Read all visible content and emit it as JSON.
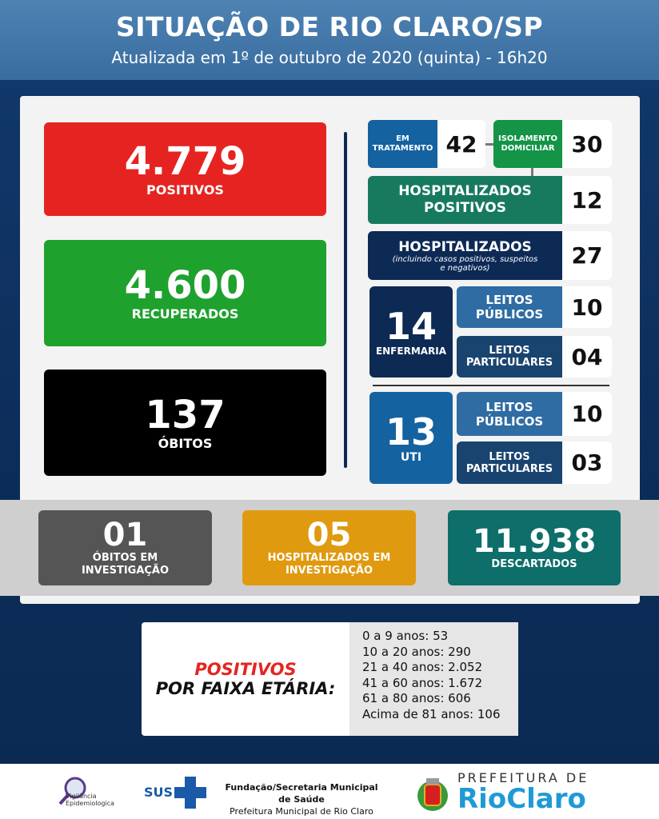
{
  "header": {
    "title": "SITUAÇÃO DE RIO CLARO/SP",
    "subtitle": "Atualizada em 1º de outubro de 2020 (quinta) - 16h20"
  },
  "main": {
    "positivos": {
      "value": "4.779",
      "label": "POSITIVOS",
      "color": "#e52421"
    },
    "recuperados": {
      "value": "4.600",
      "label": "RECUPERADOS",
      "color": "#1fa12e"
    },
    "obitos": {
      "value": "137",
      "label": "ÓBITOS",
      "color": "#000000"
    }
  },
  "right": {
    "em_tratamento": {
      "label1": "EM",
      "label2": "TRATAMENTO",
      "value": "42"
    },
    "isolamento": {
      "label1": "ISOLAMENTO",
      "label2": "DOMICILIAR",
      "value": "30"
    },
    "hosp_positivos": {
      "label1": "HOSPITALIZADOS",
      "label2": "POSITIVOS",
      "value": "12"
    },
    "hospitalizados": {
      "label": "HOSPITALIZADOS",
      "note1": "(incluindo casos positivos, suspeitos",
      "note2": "e negativos)",
      "value": "27"
    },
    "enfermaria": {
      "value": "14",
      "label": "ENFERMARIA",
      "publicos_label1": "LEITOS",
      "publicos_label2": "PÚBLICOS",
      "publicos_value": "10",
      "particulares_label1": "LEITOS",
      "particulares_label2": "PARTICULARES",
      "particulares_value": "04"
    },
    "uti": {
      "value": "13",
      "label": "UTI",
      "publicos_label1": "LEITOS",
      "publicos_label2": "PÚBLICOS",
      "publicos_value": "10",
      "particulares_label1": "LEITOS",
      "particulares_label2": "PARTICULARES",
      "particulares_value": "03"
    }
  },
  "bottom": {
    "obitos_inv": {
      "value": "01",
      "label1": "ÓBITOS EM",
      "label2": "INVESTIGAÇÃO"
    },
    "hosp_inv": {
      "value": "05",
      "label1": "HOSPITALIZADOS EM",
      "label2": "INVESTIGAÇÃO"
    },
    "descartados": {
      "value": "11.938",
      "label": "DESCARTADOS"
    }
  },
  "faixa": {
    "title1": "POSITIVOS",
    "title2": "POR FAIXA ETÁRIA:",
    "items": [
      "0 a 9 anos: 53",
      "10 a 20 anos: 290",
      "21 a 40 anos: 2.052",
      "41 a 60 anos: 1.672",
      "61 a 80 anos: 606",
      "Acima de 81 anos: 106"
    ]
  },
  "footer": {
    "vigilancia1": "Vigilância",
    "vigilancia2": "Epidemiologica",
    "sus": "SUS",
    "fundacao": "Fundação/Secretaria Municipal de Saúde",
    "prefeitura_municipal": "Prefeitura Municipal de Rio Claro",
    "prefeitura_de": "PREFEITURA DE",
    "rio_claro": "RioClaro"
  }
}
